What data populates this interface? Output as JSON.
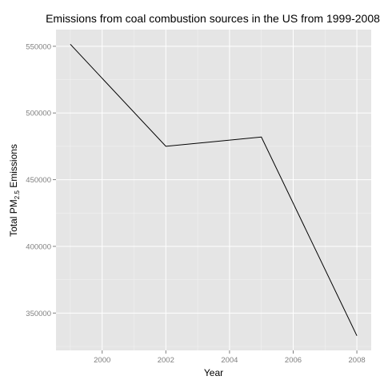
{
  "chart_data": {
    "type": "line",
    "title": "Emissions from coal combustion sources in the US from 1999-2008",
    "xlabel": "Year",
    "ylabel": {
      "prefix": "Total PM",
      "subscript": "2.5",
      "suffix": " Emissions"
    },
    "x": [
      1999,
      2002,
      2005,
      2008
    ],
    "values": [
      551500,
      475000,
      482000,
      333000
    ],
    "xlim": [
      1998.55,
      2008.45
    ],
    "ylim": [
      322000,
      562500
    ],
    "x_ticks": [
      2000,
      2002,
      2004,
      2006,
      2008
    ],
    "x_tick_labels": [
      "2000",
      "2002",
      "2004",
      "2006",
      "2008"
    ],
    "y_ticks": [
      350000,
      400000,
      450000,
      500000,
      550000
    ],
    "y_tick_labels": [
      "350000",
      "400000",
      "450000",
      "500000",
      "550000"
    ],
    "grid": true,
    "colors": {
      "panel_background": "#e5e5e5",
      "grid_major": "#ffffff",
      "grid_minor": "#f2f2f2",
      "line": "#000000",
      "tick_label": "#7f7f7f"
    }
  }
}
